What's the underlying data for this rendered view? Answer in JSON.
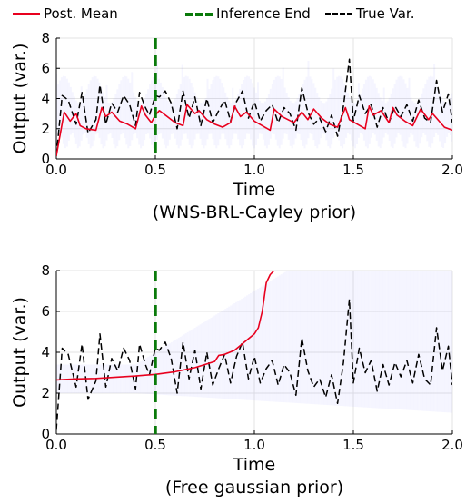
{
  "legend": {
    "items": [
      {
        "label": "Post. Mean",
        "color": "#e8001e",
        "style": "solid"
      },
      {
        "label": "Inference End",
        "color": "#0a7a0a",
        "style": "dashed"
      },
      {
        "label": "True Var.",
        "color": "#000000",
        "style": "dashed"
      }
    ]
  },
  "chart_data": [
    {
      "type": "line",
      "title": "(WNS-BRL-Cayley prior)",
      "xlabel": "Time",
      "ylabel": "Output (var.)",
      "xlim": [
        0,
        2
      ],
      "ylim": [
        0,
        8
      ],
      "xticks": [
        "0.0",
        "0.5",
        "1.0",
        "1.5",
        "2.0"
      ],
      "yticks": [
        "0",
        "2",
        "4",
        "6",
        "8"
      ],
      "grid": true,
      "inference_end": 0.5,
      "band_color": "#3a3aff",
      "series": [
        {
          "name": "Post. Mean",
          "color": "#e8001e",
          "x": [
            0.0,
            0.04,
            0.07,
            0.1,
            0.12,
            0.15,
            0.2,
            0.23,
            0.25,
            0.28,
            0.32,
            0.36,
            0.4,
            0.43,
            0.45,
            0.48,
            0.5,
            0.52,
            0.56,
            0.6,
            0.64,
            0.66,
            0.7,
            0.72,
            0.76,
            0.8,
            0.84,
            0.88,
            0.9,
            0.93,
            0.96,
            1.0,
            1.04,
            1.08,
            1.1,
            1.14,
            1.2,
            1.24,
            1.27,
            1.3,
            1.34,
            1.38,
            1.42,
            1.46,
            1.48,
            1.52,
            1.56,
            1.58,
            1.6,
            1.64,
            1.68,
            1.7,
            1.72,
            1.76,
            1.8,
            1.84,
            1.88,
            1.9,
            1.94,
            1.96,
            2.0
          ],
          "y": [
            0.2,
            3.1,
            2.5,
            3.0,
            2.2,
            2.0,
            1.9,
            3.4,
            2.8,
            3.1,
            2.5,
            2.3,
            2.0,
            3.5,
            2.9,
            2.4,
            2.9,
            3.2,
            2.8,
            2.4,
            2.2,
            3.6,
            3.0,
            3.2,
            2.6,
            2.3,
            2.1,
            2.4,
            3.5,
            2.8,
            3.1,
            2.5,
            2.2,
            1.9,
            3.3,
            2.8,
            2.4,
            3.1,
            2.6,
            3.3,
            2.7,
            2.3,
            2.1,
            3.4,
            2.6,
            2.3,
            2.0,
            3.5,
            2.9,
            3.2,
            2.4,
            3.4,
            2.9,
            2.5,
            2.2,
            3.3,
            2.6,
            3.0,
            2.4,
            2.1,
            1.9
          ]
        },
        {
          "name": "True Var.",
          "color": "#000000",
          "x": [
            0.0,
            0.03,
            0.06,
            0.1,
            0.13,
            0.16,
            0.2,
            0.22,
            0.25,
            0.28,
            0.31,
            0.34,
            0.37,
            0.4,
            0.42,
            0.45,
            0.47,
            0.5,
            0.52,
            0.55,
            0.58,
            0.61,
            0.64,
            0.67,
            0.7,
            0.73,
            0.76,
            0.79,
            0.82,
            0.85,
            0.88,
            0.91,
            0.94,
            0.97,
            1.0,
            1.03,
            1.06,
            1.09,
            1.12,
            1.15,
            1.18,
            1.21,
            1.24,
            1.27,
            1.3,
            1.33,
            1.36,
            1.39,
            1.42,
            1.45,
            1.48,
            1.5,
            1.53,
            1.56,
            1.59,
            1.62,
            1.65,
            1.68,
            1.71,
            1.74,
            1.77,
            1.8,
            1.83,
            1.86,
            1.89,
            1.92,
            1.95,
            1.98,
            2.0
          ],
          "y": [
            0.2,
            4.2,
            3.9,
            2.3,
            4.4,
            1.7,
            2.6,
            4.9,
            2.3,
            3.7,
            3.1,
            4.2,
            3.6,
            2.2,
            4.4,
            3.4,
            2.9,
            4.2,
            4.1,
            4.5,
            3.7,
            2.0,
            4.5,
            2.7,
            4.1,
            2.2,
            4.0,
            2.4,
            3.2,
            3.9,
            2.5,
            3.8,
            4.5,
            2.7,
            3.8,
            2.5,
            3.2,
            3.6,
            2.4,
            3.4,
            3.0,
            1.9,
            4.7,
            3.1,
            2.3,
            2.7,
            1.8,
            2.9,
            1.5,
            3.5,
            6.6,
            2.5,
            4.2,
            3.0,
            3.6,
            2.1,
            3.4,
            2.4,
            3.5,
            2.8,
            3.6,
            2.5,
            3.9,
            2.7,
            2.4,
            5.2,
            3.1,
            4.3,
            2.4
          ]
        }
      ]
    },
    {
      "type": "line",
      "title": "(Free gaussian prior)",
      "xlabel": "Time",
      "ylabel": "Output (var.)",
      "xlim": [
        0,
        2
      ],
      "ylim": [
        0,
        8
      ],
      "xticks": [
        "0.0",
        "0.5",
        "1.0",
        "1.5",
        "2.0"
      ],
      "yticks": [
        "0",
        "2",
        "4",
        "6",
        "8"
      ],
      "grid": true,
      "inference_end": 0.5,
      "band_color": "#3a3aff",
      "series": [
        {
          "name": "Post. Mean",
          "color": "#e8001e",
          "x": [
            0.0,
            0.1,
            0.2,
            0.3,
            0.4,
            0.5,
            0.6,
            0.7,
            0.8,
            0.82,
            0.85,
            0.9,
            0.95,
            1.0,
            1.02,
            1.04,
            1.06,
            1.08,
            1.1
          ],
          "y": [
            2.65,
            2.7,
            2.72,
            2.78,
            2.84,
            2.92,
            3.05,
            3.25,
            3.55,
            3.85,
            3.9,
            4.1,
            4.5,
            4.9,
            5.2,
            6.0,
            7.4,
            7.8,
            8.0
          ]
        },
        {
          "name": "True Var.",
          "color": "#000000",
          "x": [
            0.0,
            0.03,
            0.06,
            0.1,
            0.13,
            0.16,
            0.2,
            0.22,
            0.25,
            0.28,
            0.31,
            0.34,
            0.37,
            0.4,
            0.42,
            0.45,
            0.47,
            0.5,
            0.52,
            0.55,
            0.58,
            0.61,
            0.64,
            0.67,
            0.7,
            0.73,
            0.76,
            0.79,
            0.82,
            0.85,
            0.88,
            0.91,
            0.94,
            0.97,
            1.0,
            1.03,
            1.06,
            1.09,
            1.12,
            1.15,
            1.18,
            1.21,
            1.24,
            1.27,
            1.3,
            1.33,
            1.36,
            1.39,
            1.42,
            1.45,
            1.48,
            1.5,
            1.53,
            1.56,
            1.59,
            1.62,
            1.65,
            1.68,
            1.71,
            1.74,
            1.77,
            1.8,
            1.83,
            1.86,
            1.89,
            1.92,
            1.95,
            1.98,
            2.0
          ],
          "y": [
            0.2,
            4.2,
            3.9,
            2.3,
            4.4,
            1.7,
            2.6,
            4.9,
            2.3,
            3.7,
            3.1,
            4.2,
            3.6,
            2.2,
            4.4,
            3.4,
            2.9,
            4.2,
            4.1,
            4.5,
            3.7,
            2.0,
            4.5,
            2.7,
            4.1,
            2.2,
            4.0,
            2.4,
            3.2,
            3.9,
            2.5,
            3.8,
            4.5,
            2.7,
            3.8,
            2.5,
            3.2,
            3.6,
            2.4,
            3.4,
            3.0,
            1.9,
            4.7,
            3.1,
            2.3,
            2.7,
            1.8,
            2.9,
            1.5,
            3.5,
            6.6,
            2.5,
            4.2,
            3.0,
            3.6,
            2.1,
            3.4,
            2.4,
            3.5,
            2.8,
            3.6,
            2.5,
            3.9,
            2.7,
            2.4,
            5.2,
            3.1,
            4.3,
            2.4
          ]
        }
      ]
    }
  ]
}
